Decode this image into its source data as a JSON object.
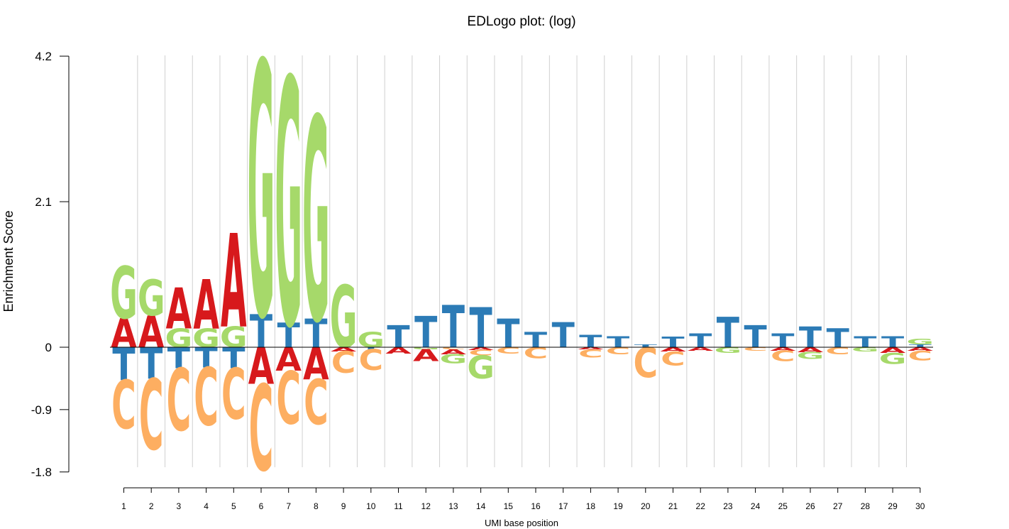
{
  "chart_data": {
    "type": "sequence-logo",
    "title": "EDLogo plot: (log)",
    "xlabel": "UMI base position",
    "ylabel": "Enrichment Score",
    "ylim": [
      -1.8,
      4.2
    ],
    "yticks": [
      "4.2",
      "2.1",
      "0",
      "-0.9",
      "-1.8"
    ],
    "ytick_values": [
      4.2,
      2.1,
      0,
      -0.9,
      -1.8
    ],
    "grid": "vertical",
    "colors": {
      "A": "#d7191c",
      "C": "#fdae61",
      "G": "#a6d96a",
      "T": "#2c7bb6"
    },
    "positions": [
      {
        "x": 1,
        "letters": [
          [
            "A",
            0.42
          ],
          [
            "G",
            0.75
          ],
          [
            "T",
            -0.47
          ],
          [
            "C",
            -0.7
          ]
        ]
      },
      {
        "x": 2,
        "letters": [
          [
            "A",
            0.46
          ],
          [
            "G",
            0.52
          ],
          [
            "T",
            -0.45
          ],
          [
            "C",
            -1.02
          ]
        ]
      },
      {
        "x": 3,
        "letters": [
          [
            "G",
            0.27
          ],
          [
            "A",
            0.59
          ],
          [
            "T",
            -0.3
          ],
          [
            "C",
            -0.9
          ]
        ]
      },
      {
        "x": 4,
        "letters": [
          [
            "G",
            0.27
          ],
          [
            "A",
            0.71
          ],
          [
            "T",
            -0.29
          ],
          [
            "C",
            -0.83
          ]
        ]
      },
      {
        "x": 5,
        "letters": [
          [
            "G",
            0.3
          ],
          [
            "A",
            1.35
          ],
          [
            "T",
            -0.3
          ],
          [
            "C",
            -0.73
          ]
        ]
      },
      {
        "x": 6,
        "letters": [
          [
            "T",
            0.48
          ],
          [
            "G",
            3.66
          ],
          [
            "A",
            -0.53
          ],
          [
            "C",
            -1.24
          ]
        ]
      },
      {
        "x": 7,
        "letters": [
          [
            "T",
            0.35
          ],
          [
            "G",
            3.55
          ],
          [
            "A",
            -0.34
          ],
          [
            "C",
            -0.76
          ]
        ]
      },
      {
        "x": 8,
        "letters": [
          [
            "T",
            0.41
          ],
          [
            "G",
            2.93
          ],
          [
            "A",
            -0.46
          ],
          [
            "C",
            -0.65
          ]
        ]
      },
      {
        "x": 9,
        "letters": [
          [
            "G",
            0.9
          ],
          [
            "A",
            -0.06
          ],
          [
            "C",
            -0.31
          ]
        ]
      },
      {
        "x": 10,
        "letters": [
          [
            "G",
            0.22
          ],
          [
            "T",
            -0.03
          ],
          [
            "C",
            -0.3
          ]
        ]
      },
      {
        "x": 11,
        "letters": [
          [
            "T",
            0.32
          ],
          [
            "A",
            -0.09
          ]
        ]
      },
      {
        "x": 12,
        "letters": [
          [
            "T",
            0.45
          ],
          [
            "G",
            -0.03
          ],
          [
            "A",
            -0.17
          ]
        ]
      },
      {
        "x": 13,
        "letters": [
          [
            "T",
            0.61
          ],
          [
            "C",
            -0.03
          ],
          [
            "A",
            -0.07
          ],
          [
            "G",
            -0.13
          ]
        ]
      },
      {
        "x": 14,
        "letters": [
          [
            "T",
            0.58
          ],
          [
            "A",
            -0.04
          ],
          [
            "C",
            -0.08
          ],
          [
            "G",
            -0.33
          ]
        ]
      },
      {
        "x": 15,
        "letters": [
          [
            "T",
            0.41
          ],
          [
            "C",
            -0.09
          ]
        ]
      },
      {
        "x": 16,
        "letters": [
          [
            "T",
            0.22
          ],
          [
            "C",
            -0.16
          ]
        ]
      },
      {
        "x": 17,
        "letters": [
          [
            "T",
            0.36
          ]
        ]
      },
      {
        "x": 18,
        "letters": [
          [
            "T",
            0.18
          ],
          [
            "A",
            -0.03
          ],
          [
            "C",
            -0.12
          ]
        ]
      },
      {
        "x": 19,
        "letters": [
          [
            "T",
            0.16
          ],
          [
            "C",
            -0.1
          ]
        ]
      },
      {
        "x": 20,
        "letters": [
          [
            "T",
            0.04
          ],
          [
            "C",
            -0.43
          ]
        ]
      },
      {
        "x": 21,
        "letters": [
          [
            "T",
            0.15
          ],
          [
            "A",
            -0.06
          ],
          [
            "C",
            -0.2
          ]
        ]
      },
      {
        "x": 22,
        "letters": [
          [
            "T",
            0.2
          ],
          [
            "A",
            -0.05
          ]
        ]
      },
      {
        "x": 23,
        "letters": [
          [
            "T",
            0.44
          ],
          [
            "G",
            -0.08
          ]
        ]
      },
      {
        "x": 24,
        "letters": [
          [
            "T",
            0.32
          ],
          [
            "C",
            -0.05
          ]
        ]
      },
      {
        "x": 25,
        "letters": [
          [
            "T",
            0.2
          ],
          [
            "A",
            -0.05
          ],
          [
            "C",
            -0.15
          ]
        ]
      },
      {
        "x": 26,
        "letters": [
          [
            "T",
            0.3
          ],
          [
            "A",
            -0.07
          ],
          [
            "G",
            -0.1
          ]
        ]
      },
      {
        "x": 27,
        "letters": [
          [
            "T",
            0.27
          ],
          [
            "C",
            -0.1
          ]
        ]
      },
      {
        "x": 28,
        "letters": [
          [
            "T",
            0.16
          ],
          [
            "G",
            -0.06
          ]
        ]
      },
      {
        "x": 29,
        "letters": [
          [
            "T",
            0.16
          ],
          [
            "A",
            -0.08
          ],
          [
            "G",
            -0.16
          ]
        ]
      },
      {
        "x": 30,
        "letters": [
          [
            "T",
            0.04
          ],
          [
            "G",
            0.08
          ],
          [
            "A",
            -0.05
          ],
          [
            "C",
            -0.14
          ]
        ]
      }
    ]
  }
}
